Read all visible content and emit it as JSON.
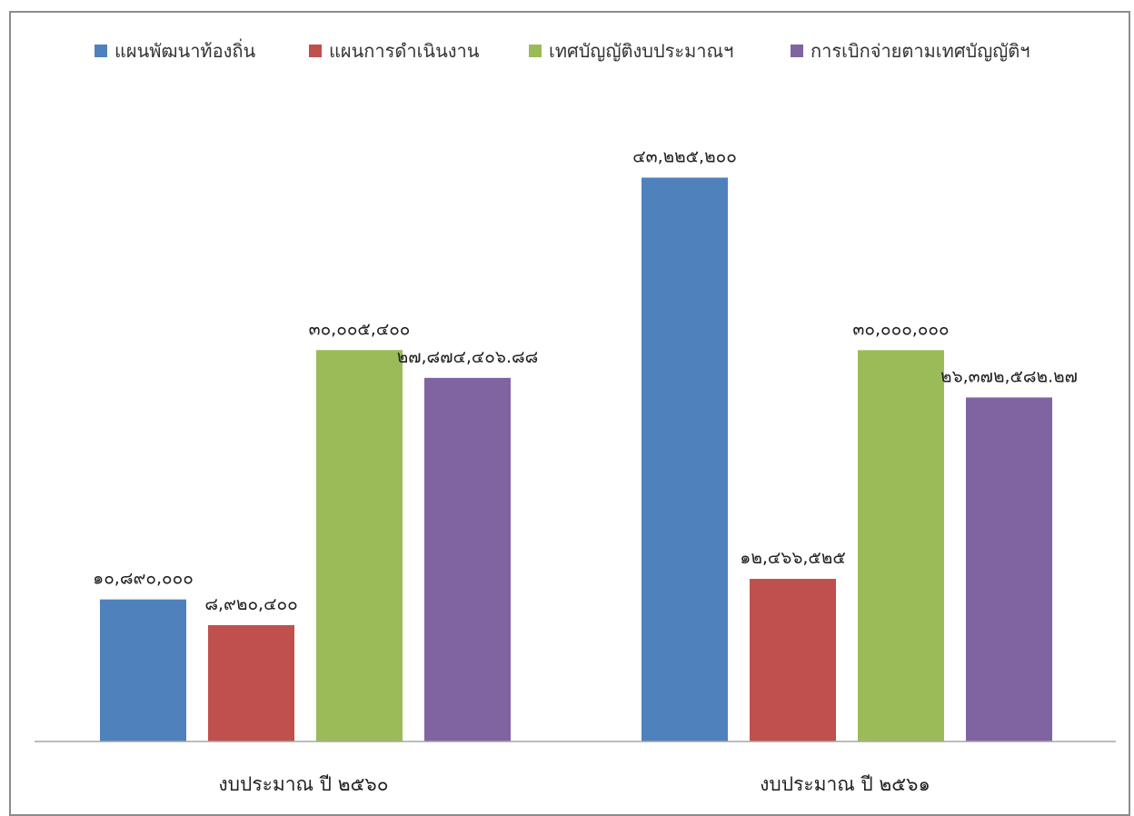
{
  "chart_data": {
    "type": "bar",
    "title": "",
    "xlabel": "",
    "ylabel": "",
    "grid": false,
    "legend_position": "top",
    "ylim": [
      0,
      45000000
    ],
    "categories": [
      "งบประมาณ ปี ๒๕๖๐",
      "งบประมาณ ปี ๒๕๖๑"
    ],
    "series": [
      {
        "name": "แผนพัฒนาท้องถิ่น",
        "color": "#4f81bd",
        "values": [
          10890000,
          43225200
        ],
        "labels": [
          "๑๐,๘๙๐,๐๐๐",
          "๔๓,๒๒๕,๒๐๐"
        ]
      },
      {
        "name": "แผนการดำเนินงาน",
        "color": "#c0504d",
        "values": [
          8920400,
          12466525
        ],
        "labels": [
          "๘,๙๒๐,๔๐๐",
          "๑๒,๔๖๖,๕๒๕"
        ]
      },
      {
        "name": "เทศบัญญัติงบประมาณฯ",
        "color": "#9bbb59",
        "values": [
          30005400,
          30000000
        ],
        "labels": [
          "๓๐,๐๐๕,๔๐๐",
          "๓๐,๐๐๐,๐๐๐"
        ]
      },
      {
        "name": "การเบิกจ่ายตามเทศบัญญัติฯ",
        "color": "#8064a2",
        "values": [
          27874406.88,
          26372582.27
        ],
        "labels": [
          "๒๗,๘๗๔,๔๐๖.๘๘",
          "๒๖,๓๗๒,๕๘๒.๒๗"
        ]
      }
    ]
  }
}
